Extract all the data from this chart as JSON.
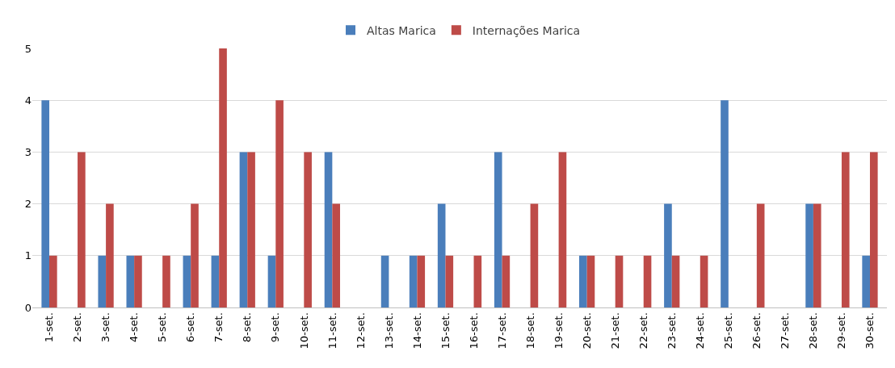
{
  "chart_data": {
    "type": "bar",
    "categories": [
      "1-set.",
      "2-set.",
      "3-set.",
      "4-set.",
      "5-set.",
      "6-set.",
      "7-set.",
      "8-set.",
      "9-set.",
      "10-set.",
      "11-set.",
      "12-set.",
      "13-set.",
      "14-set.",
      "15-set.",
      "16-set.",
      "17-set.",
      "18-set.",
      "19-set.",
      "20-set.",
      "21-set.",
      "22-set.",
      "23-set.",
      "24-set.",
      "25-set.",
      "26-set.",
      "27-set.",
      "28-set.",
      "29-set.",
      "30-set."
    ],
    "series": [
      {
        "name": "Altas Marica",
        "color": "#4a7ebb",
        "values": [
          4,
          0,
          1,
          1,
          0,
          1,
          1,
          3,
          1,
          0,
          3,
          0,
          1,
          1,
          2,
          0,
          3,
          0,
          0,
          1,
          0,
          0,
          2,
          0,
          4,
          0,
          0,
          2,
          0,
          1
        ]
      },
      {
        "name": "Internações Marica",
        "color": "#be4b48",
        "values": [
          1,
          3,
          2,
          1,
          1,
          2,
          5,
          3,
          4,
          3,
          2,
          0,
          0,
          1,
          1,
          1,
          1,
          2,
          3,
          1,
          1,
          1,
          1,
          1,
          0,
          2,
          0,
          2,
          3,
          3
        ]
      }
    ],
    "ylim": [
      0,
      5
    ],
    "yticks": [
      0,
      1,
      2,
      3,
      4,
      5
    ],
    "grid": "y",
    "legend": "top"
  }
}
